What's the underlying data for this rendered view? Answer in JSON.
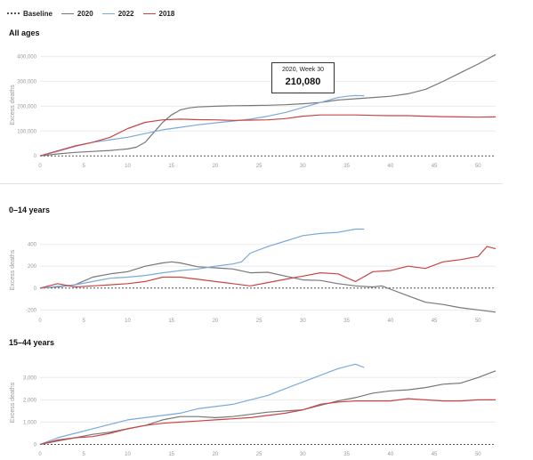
{
  "legend": [
    {
      "label": "Baseline",
      "color": "#555555",
      "style": "dotted"
    },
    {
      "label": "2020",
      "color": "#777777",
      "style": "solid"
    },
    {
      "label": "2022",
      "color": "#7aaadc",
      "style": "solid"
    },
    {
      "label": "2018",
      "color": "#c94545",
      "style": "solid"
    }
  ],
  "tooltip": {
    "title": "2020, Week 30",
    "value": "210,080"
  },
  "chart_data": [
    {
      "type": "line",
      "title": "All ages",
      "ylabel": "Excess deaths",
      "xlabel": "",
      "xlim": [
        0,
        52
      ],
      "ylim": [
        -10000,
        420000
      ],
      "x_ticks": [
        0,
        5,
        10,
        15,
        20,
        25,
        30,
        35,
        40,
        45,
        50
      ],
      "y_ticks": [
        0,
        100000,
        200000,
        300000,
        400000
      ],
      "y_tick_labels": [
        "0",
        "100,000",
        "200,000",
        "300,000",
        "400,000"
      ],
      "baseline": 0,
      "series": [
        {
          "name": "2020",
          "color": "#777777",
          "x": [
            0,
            2,
            4,
            6,
            8,
            10,
            11,
            12,
            13,
            14,
            15,
            16,
            17,
            18,
            20,
            22,
            24,
            26,
            28,
            30,
            32,
            34,
            36,
            38,
            40,
            42,
            44,
            46,
            48,
            50,
            52
          ],
          "values": [
            0,
            8000,
            14000,
            18000,
            22000,
            28000,
            35000,
            55000,
            95000,
            135000,
            165000,
            185000,
            193000,
            197000,
            200000,
            202000,
            203000,
            204000,
            206000,
            210080,
            215000,
            225000,
            230000,
            235000,
            240000,
            250000,
            268000,
            300000,
            335000,
            370000,
            408000
          ]
        },
        {
          "name": "2022",
          "color": "#7aaadc",
          "x": [
            0,
            2,
            4,
            6,
            8,
            10,
            12,
            14,
            16,
            18,
            20,
            22,
            24,
            26,
            28,
            30,
            32,
            34,
            35,
            36,
            37
          ],
          "values": [
            0,
            18000,
            38000,
            55000,
            65000,
            75000,
            90000,
            105000,
            115000,
            125000,
            133000,
            140000,
            148000,
            160000,
            175000,
            195000,
            215000,
            235000,
            240000,
            243000,
            242000
          ]
        },
        {
          "name": "2018",
          "color": "#c94545",
          "x": [
            0,
            2,
            4,
            6,
            8,
            10,
            12,
            14,
            16,
            18,
            20,
            22,
            24,
            26,
            28,
            30,
            32,
            34,
            36,
            38,
            40,
            42,
            44,
            46,
            48,
            50,
            52
          ],
          "values": [
            0,
            20000,
            40000,
            55000,
            75000,
            110000,
            135000,
            145000,
            148000,
            146000,
            145000,
            143000,
            144000,
            145000,
            150000,
            160000,
            165000,
            165000,
            165000,
            163000,
            162000,
            162000,
            160000,
            158000,
            157000,
            156000,
            157000
          ]
        }
      ]
    },
    {
      "type": "line",
      "title": "0–14 years",
      "ylabel": "Excess deaths",
      "xlabel": "",
      "xlim": [
        0,
        52
      ],
      "ylim": [
        -230,
        560
      ],
      "x_ticks": [
        0,
        5,
        10,
        15,
        20,
        25,
        30,
        35,
        40,
        45,
        50
      ],
      "y_ticks": [
        -200,
        0,
        200,
        400
      ],
      "y_tick_labels": [
        "-200",
        "0",
        "200",
        "400"
      ],
      "baseline": 0,
      "series": [
        {
          "name": "2020",
          "color": "#777777",
          "x": [
            0,
            2,
            4,
            6,
            8,
            10,
            12,
            14,
            15,
            16,
            18,
            20,
            22,
            24,
            26,
            28,
            30,
            32,
            34,
            36,
            38,
            39,
            40,
            42,
            44,
            46,
            48,
            50,
            52
          ],
          "values": [
            0,
            10,
            30,
            100,
            130,
            150,
            200,
            230,
            240,
            230,
            195,
            185,
            175,
            140,
            145,
            110,
            75,
            70,
            40,
            20,
            10,
            20,
            -10,
            -70,
            -130,
            -150,
            -180,
            -200,
            -220
          ]
        },
        {
          "name": "2022",
          "color": "#7aaadc",
          "x": [
            0,
            2,
            4,
            6,
            8,
            10,
            12,
            14,
            16,
            18,
            20,
            22,
            23,
            24,
            26,
            28,
            30,
            32,
            34,
            36,
            37
          ],
          "values": [
            0,
            15,
            30,
            60,
            90,
            100,
            115,
            140,
            160,
            175,
            200,
            220,
            240,
            320,
            380,
            430,
            480,
            500,
            510,
            540,
            540
          ]
        },
        {
          "name": "2018",
          "color": "#c94545",
          "x": [
            0,
            2,
            4,
            6,
            8,
            10,
            12,
            14,
            16,
            18,
            20,
            22,
            24,
            26,
            28,
            30,
            32,
            34,
            36,
            38,
            40,
            42,
            44,
            46,
            48,
            50,
            51,
            52
          ],
          "values": [
            0,
            40,
            10,
            20,
            30,
            40,
            60,
            100,
            100,
            80,
            60,
            40,
            20,
            50,
            80,
            110,
            140,
            130,
            60,
            150,
            160,
            200,
            180,
            240,
            260,
            290,
            380,
            360
          ]
        }
      ]
    },
    {
      "type": "line",
      "title": "15–44 years",
      "ylabel": "Excess deaths",
      "xlabel": "",
      "xlim": [
        0,
        52
      ],
      "ylim": [
        -100,
        3850
      ],
      "x_ticks": [
        0,
        5,
        10,
        15,
        20,
        25,
        30,
        35,
        40,
        45,
        50
      ],
      "y_ticks": [
        0,
        1000,
        2000,
        3000
      ],
      "y_tick_labels": [
        "0",
        "1,000",
        "2,000",
        "3,000"
      ],
      "baseline": 0,
      "series": [
        {
          "name": "2020",
          "color": "#777777",
          "x": [
            0,
            2,
            4,
            6,
            8,
            10,
            12,
            14,
            16,
            18,
            20,
            22,
            24,
            26,
            28,
            30,
            32,
            34,
            36,
            38,
            40,
            42,
            44,
            46,
            48,
            50,
            52
          ],
          "values": [
            0,
            150,
            300,
            450,
            550,
            700,
            850,
            1100,
            1250,
            1250,
            1200,
            1250,
            1350,
            1450,
            1500,
            1550,
            1750,
            1950,
            2100,
            2300,
            2400,
            2450,
            2550,
            2700,
            2750,
            3000,
            3300
          ]
        },
        {
          "name": "2022",
          "color": "#7aaadc",
          "x": [
            0,
            2,
            4,
            6,
            8,
            10,
            12,
            14,
            16,
            18,
            20,
            22,
            24,
            26,
            28,
            30,
            32,
            34,
            35,
            36,
            37
          ],
          "values": [
            0,
            300,
            500,
            700,
            900,
            1100,
            1200,
            1300,
            1400,
            1600,
            1700,
            1800,
            2000,
            2200,
            2500,
            2800,
            3100,
            3400,
            3500,
            3600,
            3450
          ]
        },
        {
          "name": "2018",
          "color": "#c94545",
          "x": [
            0,
            2,
            4,
            6,
            8,
            10,
            12,
            14,
            16,
            18,
            20,
            22,
            24,
            26,
            28,
            30,
            32,
            34,
            36,
            38,
            40,
            42,
            44,
            46,
            48,
            50,
            52
          ],
          "values": [
            0,
            200,
            300,
            350,
            500,
            700,
            850,
            950,
            1000,
            1050,
            1100,
            1150,
            1200,
            1300,
            1400,
            1550,
            1800,
            1900,
            1950,
            1950,
            1950,
            2050,
            2000,
            1950,
            1950,
            2000,
            2000
          ]
        }
      ]
    }
  ]
}
